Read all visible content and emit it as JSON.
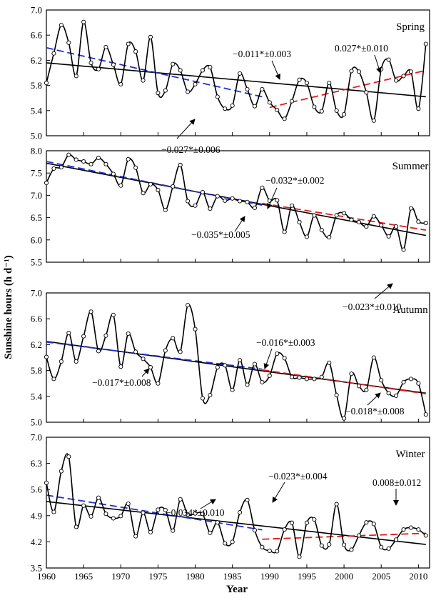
{
  "figure": {
    "ylabel": "Sunshine hours (h d⁻¹)",
    "xlabel": "Year",
    "x_ticks": [
      "1960",
      "1965",
      "1970",
      "1975",
      "1980",
      "1985",
      "1990",
      "1995",
      "2000",
      "2005",
      "2010"
    ]
  },
  "chart_data": [
    {
      "type": "line",
      "title": "Spring",
      "xlim": [
        1960,
        2011.5
      ],
      "ylim": [
        5.0,
        7.0
      ],
      "y_ticks": [
        "5.0",
        "5.4",
        "5.8",
        "6.2",
        "6.6",
        "7.0"
      ],
      "x": [
        1960,
        1961,
        1962,
        1963,
        1964,
        1965,
        1966,
        1967,
        1968,
        1969,
        1970,
        1971,
        1972,
        1973,
        1974,
        1975,
        1976,
        1977,
        1978,
        1979,
        1980,
        1981,
        1982,
        1983,
        1984,
        1985,
        1986,
        1987,
        1988,
        1989,
        1990,
        1991,
        1992,
        1993,
        1994,
        1995,
        1996,
        1997,
        1998,
        1999,
        2000,
        2001,
        2002,
        2003,
        2004,
        2005,
        2006,
        2007,
        2008,
        2009,
        2010,
        2011
      ],
      "series": [
        {
          "values": [
            5.84,
            6.31,
            6.76,
            6.48,
            5.95,
            6.81,
            6.16,
            6.06,
            6.41,
            6.13,
            5.82,
            6.46,
            6.34,
            5.88,
            6.57,
            5.68,
            5.72,
            6.14,
            6.04,
            5.7,
            5.82,
            6.04,
            6.09,
            5.62,
            5.43,
            5.48,
            5.99,
            5.74,
            5.47,
            5.74,
            5.53,
            5.41,
            5.27,
            5.55,
            5.89,
            5.84,
            5.46,
            5.39,
            5.84,
            5.4,
            5.34,
            6.03,
            6.02,
            5.69,
            5.24,
            6.06,
            6.21,
            5.88,
            5.95,
            6.02,
            5.43,
            6.46
          ]
        }
      ],
      "trends": [
        {
          "x": [
            1960,
            2011
          ],
          "y": [
            6.16,
            5.62
          ],
          "color": "#000000",
          "dash": false
        },
        {
          "x": [
            1960,
            1989
          ],
          "y": [
            6.4,
            5.62
          ],
          "color": "#1f2fd0",
          "dash": true
        },
        {
          "x": [
            1990,
            2011
          ],
          "y": [
            5.45,
            6.04
          ],
          "color": "#e01b1b",
          "dash": true
        }
      ],
      "annotations": [
        "−0.011*±0.003",
        "0.027*±0.010",
        "−0.027*±0.006"
      ]
    },
    {
      "type": "line",
      "title": "Summer",
      "xlim": [
        1960,
        2011.5
      ],
      "ylim": [
        5.5,
        8.0
      ],
      "y_ticks": [
        "5.5",
        "6.0",
        "6.5",
        "7.0",
        "7.5",
        "8.0"
      ],
      "x": [
        1960,
        1961,
        1962,
        1963,
        1964,
        1965,
        1966,
        1967,
        1968,
        1969,
        1970,
        1971,
        1972,
        1973,
        1974,
        1975,
        1976,
        1977,
        1978,
        1979,
        1980,
        1981,
        1982,
        1983,
        1984,
        1985,
        1986,
        1987,
        1988,
        1989,
        1990,
        1991,
        1992,
        1993,
        1994,
        1995,
        1996,
        1997,
        1998,
        1999,
        2000,
        2001,
        2002,
        2003,
        2004,
        2005,
        2006,
        2007,
        2008,
        2009,
        2010,
        2011
      ],
      "series": [
        {
          "values": [
            7.28,
            7.6,
            7.63,
            7.91,
            7.8,
            7.76,
            7.7,
            7.84,
            7.7,
            7.48,
            7.22,
            7.81,
            7.62,
            7.05,
            7.25,
            7.12,
            6.67,
            7.2,
            7.68,
            6.87,
            6.77,
            7.07,
            6.7,
            6.98,
            6.88,
            6.93,
            6.87,
            6.85,
            6.72,
            7.17,
            6.88,
            6.89,
            6.18,
            6.77,
            6.4,
            6.07,
            6.55,
            6.22,
            6.06,
            6.55,
            6.6,
            6.45,
            6.4,
            6.3,
            6.53,
            6.33,
            6.08,
            6.3,
            5.78,
            6.71,
            6.41,
            6.38
          ]
        }
      ],
      "trends": [
        {
          "x": [
            1960,
            2011
          ],
          "y": [
            7.72,
            6.1
          ],
          "color": "#000000",
          "dash": false
        },
        {
          "x": [
            1960,
            1989
          ],
          "y": [
            7.76,
            6.78
          ],
          "color": "#1f2fd0",
          "dash": true
        },
        {
          "x": [
            1989,
            2011
          ],
          "y": [
            6.82,
            6.22
          ],
          "color": "#e01b1b",
          "dash": true
        }
      ],
      "annotations": [
        "−0.032*±0.002",
        "−0.035*±0.005",
        "−0.023*±0.010"
      ]
    },
    {
      "type": "line",
      "title": "Autumn",
      "xlim": [
        1960,
        2011.5
      ],
      "ylim": [
        5.0,
        7.0
      ],
      "y_ticks": [
        "5.0",
        "5.4",
        "5.8",
        "6.2",
        "6.6",
        "7.0"
      ],
      "x": [
        1960,
        1961,
        1962,
        1963,
        1964,
        1965,
        1966,
        1967,
        1968,
        1969,
        1970,
        1971,
        1972,
        1973,
        1974,
        1975,
        1976,
        1977,
        1978,
        1979,
        1980,
        1981,
        1982,
        1983,
        1984,
        1985,
        1986,
        1987,
        1988,
        1989,
        1990,
        1991,
        1992,
        1993,
        1994,
        1995,
        1996,
        1997,
        1998,
        1999,
        2000,
        2001,
        2002,
        2003,
        2004,
        2005,
        2006,
        2007,
        2008,
        2009,
        2010,
        2011
      ],
      "series": [
        {
          "values": [
            6.01,
            5.67,
            5.94,
            6.38,
            5.94,
            6.33,
            6.71,
            6.1,
            6.34,
            6.66,
            5.86,
            6.37,
            6.09,
            5.98,
            5.85,
            5.6,
            6.11,
            6.3,
            6.09,
            6.81,
            6.44,
            5.37,
            5.42,
            5.85,
            5.88,
            5.5,
            5.96,
            5.58,
            5.9,
            5.62,
            5.72,
            6.06,
            5.99,
            5.7,
            5.69,
            5.67,
            5.67,
            5.7,
            5.92,
            5.42,
            5.06,
            5.75,
            5.56,
            5.5,
            6.0,
            5.65,
            5.45,
            5.41,
            5.62,
            5.67,
            5.6,
            5.12
          ]
        }
      ],
      "trends": [
        {
          "x": [
            1960,
            2011
          ],
          "y": [
            6.25,
            5.45
          ],
          "color": "#000000",
          "dash": false
        },
        {
          "x": [
            1960,
            1989
          ],
          "y": [
            6.24,
            5.82
          ],
          "color": "#1f2fd0",
          "dash": true
        },
        {
          "x": [
            1989,
            2011
          ],
          "y": [
            5.81,
            5.44
          ],
          "color": "#e01b1b",
          "dash": true
        }
      ],
      "annotations": [
        "−0.016*±0.003",
        "−0.017*±0.008",
        "−0.018*±0.008"
      ]
    },
    {
      "type": "line",
      "title": "Winter",
      "xlim": [
        1960,
        2011.5
      ],
      "ylim": [
        3.5,
        7.0
      ],
      "y_ticks": [
        "3.5",
        "4.2",
        "4.9",
        "5.6",
        "6.3",
        "7.0"
      ],
      "x": [
        1960,
        1961,
        1962,
        1963,
        1964,
        1965,
        1966,
        1967,
        1968,
        1969,
        1970,
        1971,
        1972,
        1973,
        1974,
        1975,
        1976,
        1977,
        1978,
        1979,
        1980,
        1981,
        1982,
        1983,
        1984,
        1985,
        1986,
        1987,
        1988,
        1989,
        1990,
        1991,
        1992,
        1993,
        1994,
        1995,
        1996,
        1997,
        1998,
        1999,
        2000,
        2001,
        2002,
        2003,
        2004,
        2005,
        2006,
        2007,
        2008,
        2009,
        2010,
        2011
      ],
      "series": [
        {
          "values": [
            5.78,
            5.0,
            6.09,
            6.48,
            4.6,
            5.17,
            4.88,
            5.38,
            4.95,
            4.83,
            4.89,
            5.22,
            4.35,
            4.98,
            4.46,
            5.06,
            5.05,
            4.5,
            5.34,
            4.93,
            4.96,
            4.95,
            4.44,
            4.72,
            4.16,
            4.2,
            4.99,
            5.32,
            4.51,
            4.06,
            3.96,
            3.95,
            4.53,
            4.71,
            3.8,
            4.71,
            4.8,
            4.1,
            4.13,
            5.21,
            4.12,
            3.99,
            4.37,
            4.72,
            4.68,
            4.06,
            4.02,
            4.26,
            4.53,
            4.58,
            4.53,
            4.37
          ]
        }
      ],
      "trends": [
        {
          "x": [
            1960,
            2011
          ],
          "y": [
            5.28,
            4.13
          ],
          "color": "#000000",
          "dash": false
        },
        {
          "x": [
            1960,
            1989
          ],
          "y": [
            5.45,
            4.52
          ],
          "color": "#1f2fd0",
          "dash": true
        },
        {
          "x": [
            1989,
            2011
          ],
          "y": [
            4.27,
            4.43
          ],
          "color": "#e01b1b",
          "dash": true
        }
      ],
      "annotations": [
        "−0.023*±0.004",
        "0.008±0.012",
        "−0.034*±0.010"
      ]
    }
  ]
}
